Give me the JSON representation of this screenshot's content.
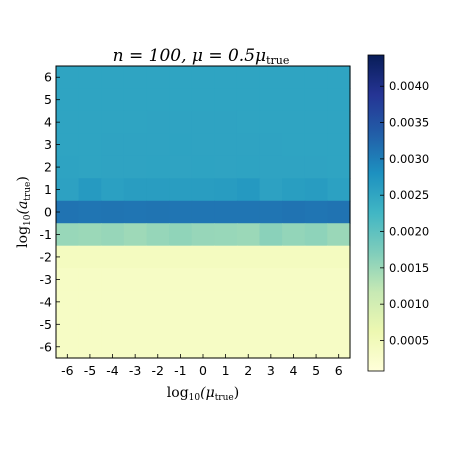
{
  "chart_data": {
    "type": "heatmap",
    "title": "n = 100,  μ = 0.5μ_true",
    "title_parts": {
      "pre": "n = 100,  μ = 0.5μ",
      "sub": "true"
    },
    "xlabel_parts": {
      "pre": "log",
      "sub1": "10",
      "mid": "(μ",
      "sub2": "true",
      "post": ")"
    },
    "ylabel_parts": {
      "pre": "log",
      "sub1": "10",
      "mid": "(a",
      "sub2": "true",
      "post": ")"
    },
    "x": [
      -6,
      -5,
      -4,
      -3,
      -2,
      -1,
      0,
      1,
      2,
      3,
      4,
      5,
      6
    ],
    "x_tick_labels": [
      "-6",
      "-5",
      "-4",
      "-3",
      "-2",
      "-1",
      "0",
      "1",
      "2",
      "3",
      "4",
      "5",
      "6"
    ],
    "y": [
      6,
      5,
      4,
      3,
      2,
      1,
      0,
      -1,
      -2,
      -3,
      -4,
      -5,
      -6
    ],
    "y_tick_labels": [
      "6",
      "5",
      "4",
      "3",
      "2",
      "1",
      "0",
      "-1",
      "-2",
      "-3",
      "-4",
      "-5",
      "-6"
    ],
    "values": [
      [
        0.00252,
        0.00252,
        0.00252,
        0.00252,
        0.00252,
        0.00252,
        0.00252,
        0.00252,
        0.00252,
        0.00252,
        0.00252,
        0.00252,
        0.00252
      ],
      [
        0.00252,
        0.00252,
        0.00252,
        0.00252,
        0.00252,
        0.00252,
        0.00252,
        0.00252,
        0.00252,
        0.00252,
        0.00252,
        0.00252,
        0.00252
      ],
      [
        0.00252,
        0.00252,
        0.00252,
        0.00252,
        0.00253,
        0.00253,
        0.00253,
        0.00253,
        0.00252,
        0.00252,
        0.00252,
        0.00252,
        0.00252
      ],
      [
        0.00252,
        0.00252,
        0.00253,
        0.00253,
        0.00253,
        0.00254,
        0.00253,
        0.00253,
        0.00253,
        0.00253,
        0.00252,
        0.00252,
        0.00252
      ],
      [
        0.00254,
        0.00252,
        0.00253,
        0.00253,
        0.00254,
        0.00253,
        0.00254,
        0.00253,
        0.00254,
        0.00253,
        0.00253,
        0.00253,
        0.00252
      ],
      [
        0.00256,
        0.00266,
        0.00258,
        0.00262,
        0.00262,
        0.00262,
        0.00262,
        0.00263,
        0.00268,
        0.00256,
        0.00261,
        0.00264,
        0.00257
      ],
      [
        0.00312,
        0.0031,
        0.00311,
        0.0031,
        0.00311,
        0.0031,
        0.0031,
        0.0031,
        0.0031,
        0.0031,
        0.00312,
        0.0031,
        0.00312
      ],
      [
        0.00152,
        0.0015,
        0.00153,
        0.00148,
        0.00154,
        0.00158,
        0.00153,
        0.00152,
        0.0015,
        0.00163,
        0.00156,
        0.0016,
        0.00151
      ],
      [
        0.00042,
        0.00042,
        0.00042,
        0.00042,
        0.00042,
        0.00042,
        0.00042,
        0.00042,
        0.00042,
        0.00042,
        0.00042,
        0.00042,
        0.00042
      ],
      [
        0.00035,
        0.00035,
        0.00035,
        0.00035,
        0.00035,
        0.00035,
        0.00035,
        0.00035,
        0.00035,
        0.00035,
        0.00035,
        0.00035,
        0.00035
      ],
      [
        0.00035,
        0.00035,
        0.00035,
        0.00035,
        0.00035,
        0.00035,
        0.00035,
        0.00035,
        0.00035,
        0.00035,
        0.00035,
        0.00035,
        0.00035
      ],
      [
        0.00035,
        0.00035,
        0.00035,
        0.00035,
        0.00035,
        0.00035,
        0.00035,
        0.00035,
        0.00035,
        0.00035,
        0.00035,
        0.00035,
        0.00035
      ],
      [
        0.00035,
        0.00035,
        0.00035,
        0.00035,
        0.00035,
        0.00035,
        0.00035,
        0.00035,
        0.00035,
        0.00035,
        0.00035,
        0.00035,
        0.00035
      ]
    ],
    "colormap": "YlGnBu",
    "colormap_stops": [
      "#ffffd9",
      "#edf8b1",
      "#c7e9b4",
      "#7fcdbb",
      "#41b6c4",
      "#1d91c0",
      "#225ea8",
      "#253494",
      "#081d58"
    ],
    "colorbar": {
      "range": [
        8e-05,
        0.00443
      ],
      "ticks": [
        0.0005,
        0.001,
        0.0015,
        0.002,
        0.0025,
        0.003,
        0.0035,
        0.004
      ],
      "tick_labels": [
        "0.0005",
        "0.0010",
        "0.0015",
        "0.0020",
        "0.0025",
        "0.0030",
        "0.0035",
        "0.0040"
      ]
    },
    "grid": false
  }
}
